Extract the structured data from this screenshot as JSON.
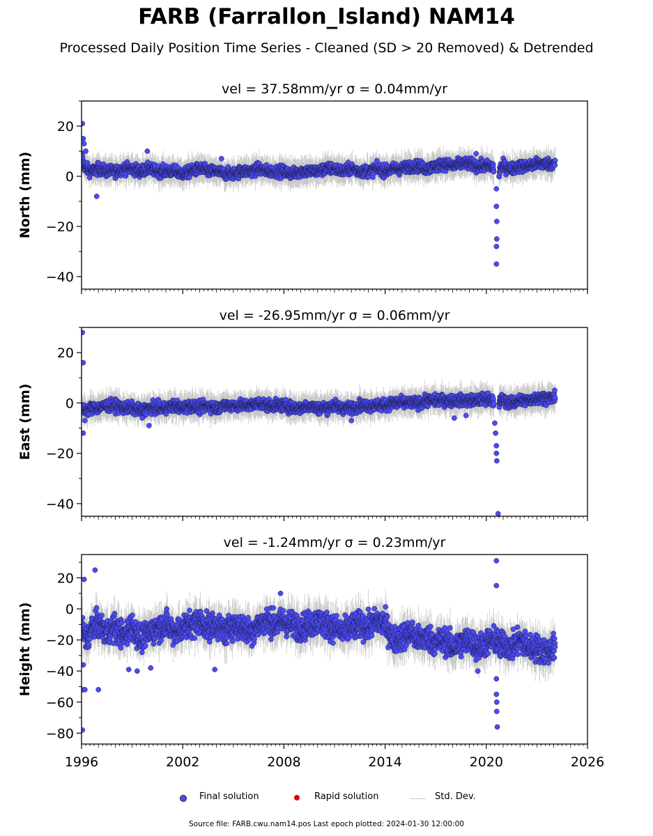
{
  "header": {
    "title": "FARB (Farrallon_Island) NAM14",
    "subtitle": "Processed Daily Position Time Series - Cleaned (SD > 20 Removed) & Detrended"
  },
  "legend": {
    "final": "Final solution",
    "rapid": "Rapid solution",
    "std": "Std. Dev."
  },
  "footer": {
    "source": "Source file: FARB.cwu.nam14.pos  Last epoch plotted: 2024-01-30 12:00:00"
  },
  "colors": {
    "final": "#4b4bf5",
    "rapid": "#e00000",
    "std": "#c8c8c8"
  },
  "chart_data": [
    {
      "type": "scatter",
      "title": "vel = 37.58mm/yr   σ = 0.04mm/yr",
      "ylabel": "North (mm)",
      "xlim": [
        1996,
        2026
      ],
      "ylim": [
        -45,
        30
      ],
      "yticks": [
        20,
        0,
        -20,
        -40
      ],
      "xticks": [
        1996,
        2002,
        2008,
        2014,
        2020,
        2026
      ],
      "show_xticklabels": false,
      "series": [
        {
          "name": "Final solution",
          "x": [
            1996.0,
            1996.1,
            1996.3,
            1996.6,
            1997.0,
            1997.5,
            1998.0,
            1998.5,
            1999.0,
            1999.5,
            2000.0,
            2000.5,
            2001.0,
            2001.5,
            2002.0,
            2002.5,
            2003.0,
            2003.5,
            2004.0,
            2004.5,
            2005.0,
            2005.5,
            2006.0,
            2006.5,
            2007.0,
            2007.5,
            2008.0,
            2008.5,
            2009.0,
            2009.5,
            2010.0,
            2010.5,
            2011.0,
            2011.5,
            2012.0,
            2012.5,
            2013.0,
            2013.5,
            2014.0,
            2014.5,
            2015.0,
            2015.5,
            2016.0,
            2016.5,
            2017.0,
            2017.5,
            2018.0,
            2018.5,
            2019.0,
            2019.5,
            2020.0,
            2020.4,
            2020.6,
            2020.8,
            2021.0,
            2021.5,
            2022.0,
            2022.5,
            2023.0,
            2023.5,
            2024.0
          ],
          "y": [
            8,
            5,
            3,
            2,
            3,
            2,
            2,
            3,
            3,
            2,
            3,
            2,
            2,
            2,
            1,
            2,
            3,
            2,
            2,
            1,
            1,
            2,
            2,
            3,
            2,
            2,
            2,
            1,
            2,
            2,
            2,
            3,
            3,
            2,
            3,
            2,
            2,
            3,
            2,
            3,
            3,
            4,
            4,
            3,
            4,
            5,
            4,
            5,
            5,
            4,
            4,
            4,
            -10,
            3,
            4,
            3,
            4,
            4,
            5,
            5,
            5
          ]
        },
        {
          "name": "Rapid solution",
          "x": [],
          "y": []
        }
      ],
      "outliers": {
        "x": [
          1996.05,
          1996.1,
          1996.15,
          1996.25,
          1996.9,
          1999.9,
          2004.3,
          2019.4,
          2020.6,
          2020.6,
          2020.62,
          2020.62,
          2020.6,
          2020.6
        ],
        "y": [
          21,
          15,
          13,
          10,
          -8,
          10,
          7,
          9,
          -5,
          -12,
          -18,
          -25,
          -28,
          -35
        ]
      }
    },
    {
      "type": "scatter",
      "title": "vel = -26.95mm/yr   σ = 0.06mm/yr",
      "ylabel": "East (mm)",
      "xlim": [
        1996,
        2026
      ],
      "ylim": [
        -45,
        30
      ],
      "yticks": [
        20,
        0,
        -20,
        -40
      ],
      "xticks": [
        1996,
        2002,
        2008,
        2014,
        2020,
        2026
      ],
      "show_xticklabels": false,
      "series": [
        {
          "name": "Final solution",
          "x": [
            1996.0,
            1996.1,
            1996.3,
            1996.6,
            1997.0,
            1997.5,
            1998.0,
            1998.5,
            1999.0,
            1999.5,
            2000.0,
            2000.5,
            2001.0,
            2001.5,
            2002.0,
            2002.5,
            2003.0,
            2003.5,
            2004.0,
            2004.5,
            2005.0,
            2005.5,
            2006.0,
            2006.5,
            2007.0,
            2007.5,
            2008.0,
            2008.5,
            2009.0,
            2009.5,
            2010.0,
            2010.5,
            2011.0,
            2011.5,
            2012.0,
            2012.5,
            2013.0,
            2013.5,
            2014.0,
            2014.5,
            2015.0,
            2015.5,
            2016.0,
            2016.5,
            2017.0,
            2017.5,
            2018.0,
            2018.5,
            2019.0,
            2019.5,
            2020.0,
            2020.4,
            2020.6,
            2020.8,
            2021.0,
            2021.5,
            2022.0,
            2022.5,
            2023.0,
            2023.5,
            2024.0
          ],
          "y": [
            -3,
            -2,
            -3,
            -2,
            -2,
            -1,
            -1,
            -2,
            -2,
            -3,
            -2,
            -2,
            -2,
            -1,
            -2,
            -1,
            -2,
            -1,
            -2,
            -1,
            -1,
            -1,
            -1,
            0,
            -1,
            -1,
            -1,
            -2,
            -2,
            -1,
            -2,
            -2,
            -1,
            -2,
            -2,
            -1,
            -1,
            -1,
            -1,
            0,
            0,
            0,
            0,
            1,
            1,
            1,
            1,
            1,
            1,
            1,
            2,
            1,
            -10,
            1,
            1,
            0,
            1,
            1,
            2,
            2,
            2
          ]
        },
        {
          "name": "Rapid solution",
          "x": [],
          "y": []
        }
      ],
      "outliers": {
        "x": [
          1996.05,
          1996.1,
          1996.1,
          1996.2,
          1999.6,
          2000.0,
          2012.0,
          2018.1,
          2018.8,
          2020.5,
          2020.55,
          2020.6,
          2020.6,
          2020.62,
          2020.7
        ],
        "y": [
          28,
          16,
          -12,
          -7,
          -6,
          -9,
          -7,
          -6,
          -5,
          -8,
          -12,
          -17,
          -20,
          -23,
          -44
        ]
      }
    },
    {
      "type": "scatter",
      "title": "vel = -1.24mm/yr   σ = 0.23mm/yr",
      "ylabel": "Height (mm)",
      "xlim": [
        1996,
        2026
      ],
      "ylim": [
        -87,
        35
      ],
      "yticks": [
        20,
        0,
        -20,
        -40,
        -60,
        -80
      ],
      "xticks": [
        1996,
        2002,
        2008,
        2014,
        2020,
        2026
      ],
      "show_xticklabels": true,
      "series": [
        {
          "name": "Final solution",
          "x": [
            1996.0,
            1996.1,
            1996.3,
            1996.6,
            1997.0,
            1997.5,
            1998.0,
            1998.5,
            1999.0,
            1999.5,
            2000.0,
            2000.5,
            2001.0,
            2001.5,
            2002.0,
            2002.5,
            2003.0,
            2003.5,
            2004.0,
            2004.5,
            2005.0,
            2005.5,
            2006.0,
            2006.5,
            2007.0,
            2007.5,
            2008.0,
            2008.5,
            2009.0,
            2009.5,
            2010.0,
            2010.5,
            2011.0,
            2011.5,
            2012.0,
            2012.5,
            2013.0,
            2013.5,
            2014.0,
            2014.5,
            2015.0,
            2015.5,
            2016.0,
            2016.5,
            2017.0,
            2017.5,
            2018.0,
            2018.5,
            2019.0,
            2019.5,
            2020.0,
            2020.4,
            2020.6,
            2020.8,
            2021.0,
            2021.5,
            2022.0,
            2022.5,
            2023.0,
            2023.5,
            2024.0
          ],
          "y": [
            -10,
            -15,
            -20,
            -12,
            -10,
            -15,
            -12,
            -18,
            -10,
            -20,
            -15,
            -12,
            -10,
            -15,
            -12,
            -10,
            -8,
            -12,
            -10,
            -15,
            -10,
            -12,
            -15,
            -10,
            -8,
            -10,
            -8,
            -10,
            -12,
            -10,
            -8,
            -10,
            -12,
            -15,
            -12,
            -10,
            -12,
            -8,
            -10,
            -20,
            -18,
            -15,
            -20,
            -18,
            -22,
            -20,
            -25,
            -22,
            -20,
            -25,
            -22,
            -20,
            -20,
            -25,
            -22,
            -25,
            -20,
            -25,
            -25,
            -28,
            -25
          ]
        },
        {
          "name": "Rapid solution",
          "x": [],
          "y": []
        }
      ],
      "outliers": {
        "x": [
          1996.05,
          1996.1,
          1996.1,
          1996.15,
          1996.2,
          1996.8,
          1997.0,
          1998.8,
          1999.3,
          2000.1,
          2003.9,
          2007.8,
          2019.5,
          2020.6,
          2020.6,
          2020.62,
          2020.62,
          2020.65,
          2020.6,
          2020.6
        ],
        "y": [
          -78,
          -52,
          -36,
          19,
          -52,
          25,
          -52,
          -39,
          -40,
          -38,
          -39,
          10,
          -40,
          31,
          15,
          -60,
          -66,
          -76,
          -55,
          -45
        ]
      }
    }
  ]
}
